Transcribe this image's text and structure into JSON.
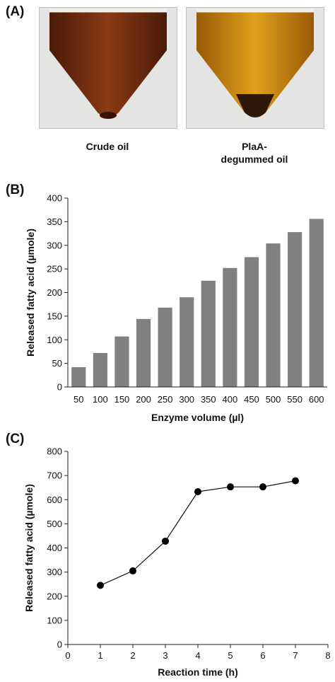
{
  "panels": {
    "a_label": "(A)",
    "b_label": "(B)",
    "c_label": "(C)"
  },
  "photos": {
    "left_caption": "Crude oil",
    "right_caption_line1": "PlaA-",
    "right_caption_line2": "degummed oil",
    "crude_color": "#7a2e10",
    "degummed_color": "#c9850e"
  },
  "chart_data": [
    {
      "type": "bar",
      "xlabel": "Enzyme volume (µl)",
      "ylabel": "Released fatty acid (µmole)",
      "categories": [
        "50",
        "100",
        "150",
        "200",
        "250",
        "300",
        "350",
        "400",
        "450",
        "500",
        "550",
        "600"
      ],
      "values": [
        42,
        72,
        107,
        144,
        168,
        190,
        225,
        252,
        275,
        304,
        328,
        356
      ],
      "ylim": [
        0,
        400
      ],
      "yticks": [
        0,
        50,
        100,
        150,
        200,
        250,
        300,
        350,
        400
      ],
      "bar_color": "#808080",
      "grid": false
    },
    {
      "type": "line",
      "xlabel": "Reaction time (h)",
      "ylabel": "Released fatty acid (µmole)",
      "x": [
        1,
        2,
        3,
        4,
        5,
        6,
        7
      ],
      "y": [
        245,
        305,
        428,
        633,
        653,
        653,
        678
      ],
      "xlim": [
        0,
        8
      ],
      "ylim": [
        0,
        800
      ],
      "xticks": [
        0,
        1,
        2,
        3,
        4,
        5,
        6,
        7,
        8
      ],
      "yticks": [
        0,
        100,
        200,
        300,
        400,
        500,
        600,
        700,
        800
      ],
      "marker_color": "#000000",
      "grid": false
    }
  ]
}
